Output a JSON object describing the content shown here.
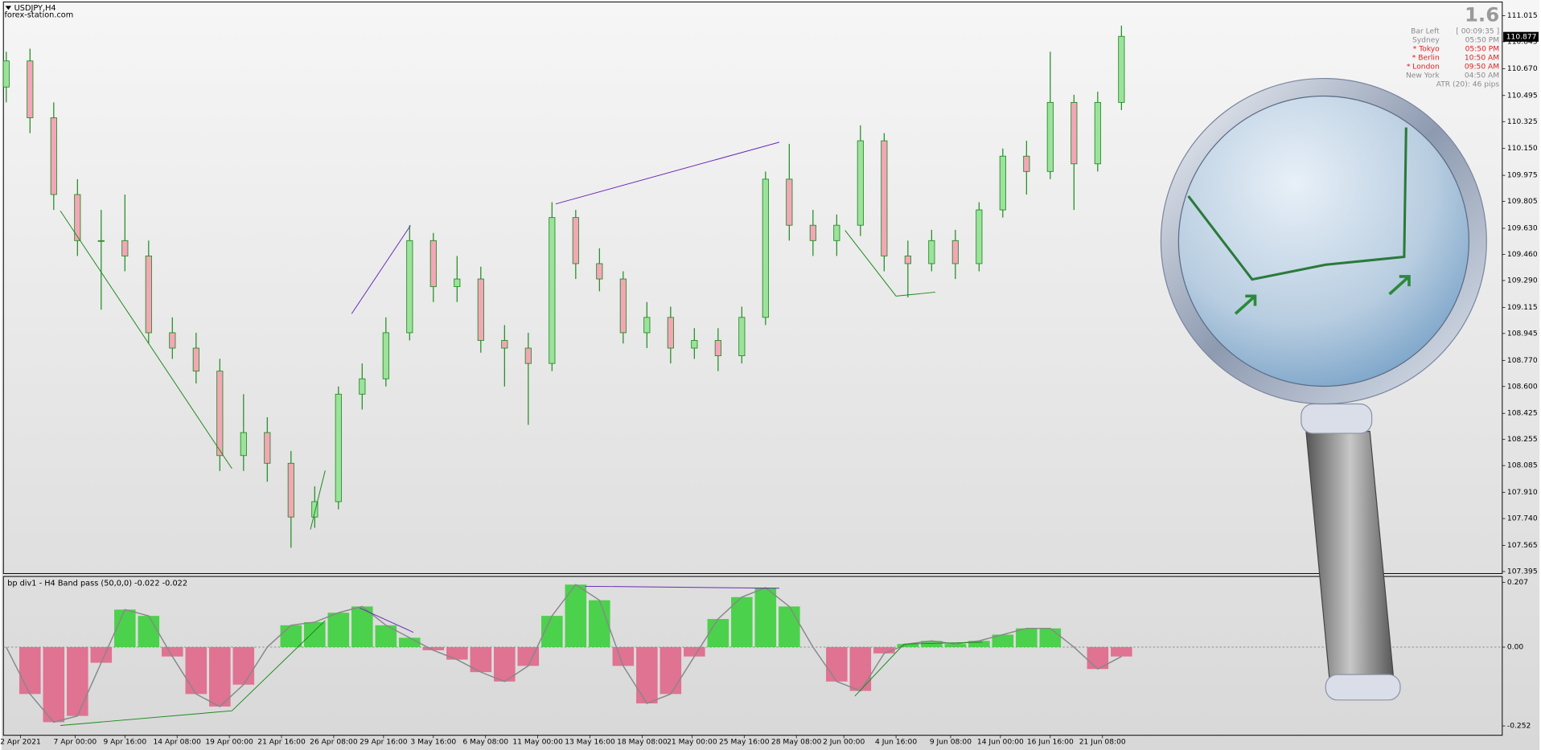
{
  "header": {
    "symbol": "USDJPY,H4",
    "site": "forex-station.com"
  },
  "info": {
    "spread": "1.6",
    "rows": [
      [
        "Bar Left",
        "[ 00:09:35 ]"
      ],
      [
        "Sydney",
        "05:50 PM"
      ],
      [
        "* Tokyo",
        "05:50 PM"
      ],
      [
        "* Berlin",
        "10:50 AM"
      ],
      [
        "* London",
        "09:50 AM"
      ],
      [
        "New York",
        "04:50 AM"
      ]
    ],
    "atr": "ATR (20): 46 pips"
  },
  "chart_data": [
    {
      "type": "candlestick",
      "last_price": 110.877,
      "open": [
        110.55,
        110.72,
        110.35,
        109.85,
        109.55,
        109.55,
        109.45,
        108.95,
        108.85,
        108.7,
        108.15,
        108.3,
        108.1,
        107.75,
        107.85,
        108.55,
        108.65,
        108.95,
        109.55,
        109.25,
        109.3,
        108.9,
        108.85,
        108.75,
        109.7,
        109.4,
        109.3,
        108.95,
        109.05,
        108.85,
        108.9,
        108.8,
        109.05,
        109.95,
        109.65,
        109.55,
        109.65,
        110.2,
        109.45,
        109.4,
        109.55,
        109.4,
        109.75,
        110.1,
        110.0,
        110.45,
        110.05,
        110.45
      ],
      "high": [
        110.78,
        110.8,
        110.45,
        109.95,
        109.75,
        109.85,
        109.55,
        109.05,
        108.95,
        108.78,
        108.55,
        108.4,
        108.18,
        107.95,
        108.6,
        108.75,
        109.05,
        109.65,
        109.6,
        109.45,
        109.38,
        109.0,
        108.95,
        109.8,
        109.75,
        109.5,
        109.35,
        109.15,
        109.12,
        108.98,
        108.98,
        109.12,
        110.0,
        110.18,
        109.75,
        109.72,
        110.3,
        110.25,
        109.55,
        109.62,
        109.62,
        109.8,
        110.15,
        110.2,
        110.78,
        110.5,
        110.52,
        110.95
      ],
      "low": [
        110.45,
        110.25,
        109.75,
        109.45,
        109.1,
        109.35,
        108.88,
        108.78,
        108.62,
        108.05,
        108.05,
        107.98,
        107.55,
        107.68,
        107.8,
        108.45,
        108.6,
        108.9,
        109.15,
        109.15,
        108.82,
        108.6,
        108.35,
        108.7,
        109.3,
        109.22,
        108.88,
        108.85,
        108.75,
        108.78,
        108.7,
        108.75,
        109.0,
        109.55,
        109.45,
        109.45,
        109.58,
        109.35,
        109.18,
        109.35,
        109.3,
        109.35,
        109.7,
        109.85,
        109.95,
        109.75,
        110.0,
        110.4
      ],
      "close": [
        110.72,
        110.35,
        109.85,
        109.55,
        109.55,
        109.45,
        108.95,
        108.85,
        108.7,
        108.15,
        108.3,
        108.1,
        107.75,
        107.85,
        108.55,
        108.65,
        108.95,
        109.55,
        109.25,
        109.3,
        108.9,
        108.85,
        108.75,
        109.7,
        109.4,
        109.3,
        108.95,
        109.05,
        108.85,
        108.9,
        108.8,
        109.05,
        109.95,
        109.65,
        109.55,
        109.65,
        110.2,
        109.45,
        109.4,
        109.55,
        109.4,
        109.75,
        110.1,
        110.0,
        110.45,
        110.05,
        110.45,
        110.88
      ],
      "bull_color": "#9ce29c",
      "bear_color": "#f4a6b8",
      "wick_color": "#1e8c1e",
      "xlim": [
        -0.12,
        63.05
      ],
      "ylim": [
        107.382,
        111.104
      ],
      "yticks": [
        111.015,
        110.845,
        {
          "value": 110.67,
          "label": "110.670"
        },
        110.495,
        110.325,
        {
          "value": 110.15,
          "label": "110.150"
        },
        109.975,
        109.805,
        {
          "value": 109.63,
          "label": "109.630"
        },
        {
          "value": 109.46,
          "label": "109.460"
        },
        {
          "value": 109.29,
          "label": "109.290"
        },
        109.115,
        108.945,
        {
          "value": 108.77,
          "label": "108.770"
        },
        {
          "value": 108.6,
          "label": "108.600"
        },
        108.425,
        108.255,
        108.085,
        {
          "value": 107.91,
          "label": "107.910"
        },
        {
          "value": 107.74,
          "label": "107.740"
        },
        107.565,
        107.395
      ],
      "xticks": [
        {
          "value": 0.6,
          "label": "2 Apr 2021"
        },
        {
          "value": 2.9,
          "label": "7 Apr 00:00"
        },
        {
          "value": 5.0,
          "label": "9 Apr 16:00"
        },
        {
          "value": 7.2,
          "label": "14 Apr 08:00"
        },
        {
          "value": 9.4,
          "label": "19 Apr 00:00"
        },
        {
          "value": 11.6,
          "label": "21 Apr 16:00"
        },
        {
          "value": 13.8,
          "label": "26 Apr 08:00"
        },
        {
          "value": 15.9,
          "label": "29 Apr 16:00"
        },
        {
          "value": 18.0,
          "label": "3 May 16:00"
        },
        {
          "value": 20.2,
          "label": "6 May 08:00"
        },
        {
          "value": 22.4,
          "label": "11 May 00:00"
        },
        {
          "value": 24.6,
          "label": "13 May 16:00"
        },
        {
          "value": 26.8,
          "label": "18 May 08:00"
        },
        {
          "value": 28.9,
          "label": "21 May 00:00"
        },
        {
          "value": 31.1,
          "label": "25 May 16:00"
        },
        {
          "value": 33.3,
          "label": "28 May 08:00"
        },
        {
          "value": 35.3,
          "label": "2 Jun 00:00"
        },
        {
          "value": 37.5,
          "label": "4 Jun 16:00"
        },
        {
          "value": 39.8,
          "label": "9 Jun 08:00"
        },
        {
          "value": 41.9,
          "label": "14 Jun 00:00"
        },
        {
          "value": 44.0,
          "label": "16 Jun 16:00"
        },
        {
          "value": 46.2,
          "label": "21 Jun 08:00"
        }
      ]
    },
    {
      "type": "histogram",
      "title": "bp div1 - H4 Band pass (50,0,0) -0.022 -0.022",
      "values": [
        0.0,
        -0.15,
        -0.24,
        -0.22,
        -0.05,
        0.12,
        0.1,
        -0.03,
        -0.15,
        -0.19,
        -0.12,
        0.0,
        0.07,
        0.08,
        0.11,
        0.13,
        0.07,
        0.03,
        -0.01,
        -0.04,
        -0.08,
        -0.11,
        -0.06,
        0.1,
        0.2,
        0.15,
        -0.06,
        -0.18,
        -0.15,
        -0.03,
        0.09,
        0.16,
        0.19,
        0.13,
        0.0,
        -0.11,
        -0.14,
        -0.02,
        0.01,
        0.02,
        0.01,
        0.02,
        0.04,
        0.06,
        0.06,
        0.0,
        -0.07,
        -0.03
      ],
      "positive_color": "#3ccf3c",
      "negative_color": "#e0668a",
      "ylim": [
        -0.282,
        0.226
      ],
      "yticks": [
        0.207,
        {
          "value": 0,
          "label": "0.00"
        },
        -0.252
      ]
    }
  ]
}
